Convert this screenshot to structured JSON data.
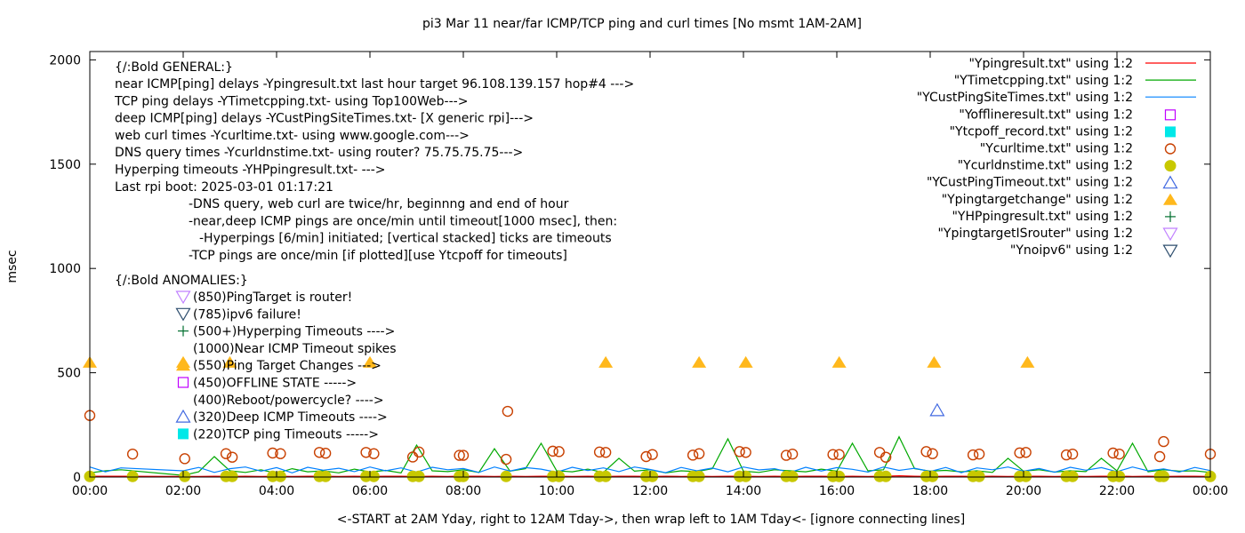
{
  "chart_data": {
    "type": "line+scatter",
    "title": "pi3 Mar 11  near/far ICMP/TCP ping and curl times [No msmt 1AM-2AM]",
    "xlabel": "<-START at 2AM Yday, right to 12AM Tday->, then wrap left to 1AM Tday<- [ignore connecting lines]",
    "ylabel": "msec",
    "xlim": [
      "00:00",
      "24:00"
    ],
    "ylim": [
      0,
      2040
    ],
    "xticks": [
      "00:00",
      "02:00",
      "04:00",
      "06:00",
      "08:00",
      "10:00",
      "12:00",
      "14:00",
      "16:00",
      "18:00",
      "20:00",
      "22:00",
      "00:00"
    ],
    "yticks": [
      "0",
      "500",
      "1000",
      "1500",
      "2000"
    ],
    "grid": false,
    "legend_position": "top-right",
    "x": [
      "00:00",
      "00:20",
      "00:40",
      "02:00",
      "02:20",
      "02:40",
      "03:00",
      "03:20",
      "03:40",
      "04:00",
      "04:20",
      "04:40",
      "05:00",
      "05:20",
      "05:40",
      "06:00",
      "06:20",
      "06:40",
      "07:00",
      "07:20",
      "07:40",
      "08:00",
      "08:20",
      "08:40",
      "09:00",
      "09:20",
      "09:40",
      "10:00",
      "10:20",
      "10:40",
      "11:00",
      "11:20",
      "11:40",
      "12:00",
      "12:20",
      "12:40",
      "13:00",
      "13:20",
      "13:40",
      "14:00",
      "14:20",
      "14:40",
      "15:00",
      "15:20",
      "15:40",
      "16:00",
      "16:20",
      "16:40",
      "17:00",
      "17:20",
      "17:40",
      "18:00",
      "18:20",
      "18:40",
      "19:00",
      "19:20",
      "19:40",
      "20:00",
      "20:20",
      "20:40",
      "21:00",
      "21:20",
      "21:40",
      "22:00",
      "22:20",
      "22:40",
      "23:00",
      "23:20",
      "23:40",
      "24:00"
    ],
    "series": [
      {
        "name": "\"Ypingresult.txt\" using 1:2",
        "style": "line",
        "color": "#ff0000",
        "values": [
          4,
          4,
          4,
          3,
          3,
          4,
          3,
          4,
          3,
          4,
          3,
          4,
          4,
          3,
          4,
          3,
          4,
          4,
          3,
          4,
          3,
          4,
          4,
          3,
          4,
          3,
          4,
          4,
          3,
          4,
          3,
          4,
          4,
          3,
          4,
          3,
          4,
          3,
          4,
          4,
          3,
          4,
          3,
          4,
          4,
          3,
          4,
          3,
          4,
          6,
          4,
          3,
          4,
          4,
          3,
          4,
          3,
          4,
          4,
          3,
          4,
          3,
          4,
          4,
          3,
          4,
          3,
          4,
          4,
          3
        ]
      },
      {
        "name": "\"YTimetcpping.txt\" using 1:2",
        "style": "line",
        "color": "#00a800",
        "values": [
          20,
          30,
          35,
          8,
          25,
          98,
          30,
          22,
          35,
          18,
          40,
          25,
          30,
          20,
          38,
          24,
          32,
          20,
          153,
          30,
          26,
          35,
          22,
          136,
          28,
          40,
          162,
          30,
          25,
          38,
          22,
          90,
          28,
          35,
          20,
          30,
          26,
          40,
          183,
          28,
          22,
          35,
          30,
          25,
          38,
          28,
          162,
          30,
          35,
          193,
          40,
          28,
          32,
          25,
          30,
          22,
          90,
          28,
          35,
          24,
          30,
          26,
          90,
          30,
          162,
          25,
          35,
          28,
          30,
          22
        ]
      },
      {
        "name": "\"YCustPingSiteTimes.txt\" using 1:2",
        "style": "line",
        "color": "#0080ff",
        "values": [
          48,
          25,
          44,
          30,
          46,
          22,
          40,
          48,
          28,
          45,
          20,
          47,
          33,
          42,
          26,
          48,
          30,
          44,
          24,
          47,
          35,
          41,
          22,
          48,
          29,
          45,
          38,
          23,
          47,
          31,
          44,
          26,
          48,
          36,
          21,
          46,
          30,
          43,
          25,
          48,
          34,
          40,
          22,
          47,
          29,
          45,
          37,
          24,
          48,
          32,
          42,
          27,
          46,
          21,
          44,
          35,
          48,
          28,
          41,
          23,
          47,
          33,
          45,
          26,
          48,
          30,
          39,
          24,
          46,
          31
        ]
      },
      {
        "name": "\"Yofflineresult.txt\" using 1:2",
        "style": "open-square",
        "color": "#c000ff",
        "points": []
      },
      {
        "name": "\"Ytcpoff_record.txt\" using 1:2",
        "style": "filled-square",
        "color": "#00e8e8",
        "points": []
      },
      {
        "name": "\"Ycurltime.txt\" using 1:2",
        "style": "open-circle",
        "color": "#c84000",
        "points": [
          [
            "00:00",
            295
          ],
          [
            "00:55",
            110
          ],
          [
            "02:02",
            88
          ],
          [
            "02:55",
            112
          ],
          [
            "03:03",
            95
          ],
          [
            "03:55",
            115
          ],
          [
            "04:05",
            112
          ],
          [
            "04:55",
            118
          ],
          [
            "05:03",
            114
          ],
          [
            "05:55",
            118
          ],
          [
            "06:05",
            112
          ],
          [
            "06:55",
            96
          ],
          [
            "07:03",
            120
          ],
          [
            "07:55",
            104
          ],
          [
            "08:00",
            104
          ],
          [
            "08:55",
            85
          ],
          [
            "08:57",
            315
          ],
          [
            "09:55",
            124
          ],
          [
            "10:03",
            122
          ],
          [
            "10:55",
            120
          ],
          [
            "11:03",
            118
          ],
          [
            "11:55",
            98
          ],
          [
            "12:03",
            108
          ],
          [
            "12:55",
            105
          ],
          [
            "13:03",
            112
          ],
          [
            "13:55",
            122
          ],
          [
            "14:03",
            118
          ],
          [
            "14:55",
            104
          ],
          [
            "15:03",
            110
          ],
          [
            "15:55",
            108
          ],
          [
            "16:03",
            108
          ],
          [
            "16:55",
            118
          ],
          [
            "17:03",
            95
          ],
          [
            "17:55",
            122
          ],
          [
            "18:03",
            112
          ],
          [
            "18:55",
            106
          ],
          [
            "19:03",
            110
          ],
          [
            "19:55",
            116
          ],
          [
            "20:03",
            118
          ],
          [
            "20:55",
            106
          ],
          [
            "21:03",
            110
          ],
          [
            "21:55",
            115
          ],
          [
            "22:03",
            110
          ],
          [
            "22:55",
            98
          ],
          [
            "23:00",
            170
          ],
          [
            "24:00",
            110
          ]
        ]
      },
      {
        "name": "\"Ycurldnstime.txt\" using 1:2",
        "style": "filled-circle",
        "color": "#c8c800",
        "points": [
          [
            "00:00",
            3
          ],
          [
            "00:55",
            3
          ],
          [
            "02:02",
            3
          ],
          [
            "02:55",
            3
          ],
          [
            "03:03",
            3
          ],
          [
            "03:55",
            3
          ],
          [
            "04:05",
            3
          ],
          [
            "04:55",
            3
          ],
          [
            "05:03",
            3
          ],
          [
            "05:55",
            3
          ],
          [
            "06:05",
            3
          ],
          [
            "06:55",
            3
          ],
          [
            "07:03",
            3
          ],
          [
            "07:55",
            3
          ],
          [
            "08:00",
            3
          ],
          [
            "08:55",
            3
          ],
          [
            "09:55",
            3
          ],
          [
            "10:03",
            3
          ],
          [
            "10:55",
            3
          ],
          [
            "11:03",
            3
          ],
          [
            "11:55",
            3
          ],
          [
            "12:03",
            3
          ],
          [
            "12:55",
            3
          ],
          [
            "13:03",
            3
          ],
          [
            "13:55",
            3
          ],
          [
            "14:03",
            3
          ],
          [
            "14:55",
            3
          ],
          [
            "15:03",
            3
          ],
          [
            "15:55",
            3
          ],
          [
            "16:03",
            3
          ],
          [
            "16:55",
            3
          ],
          [
            "17:03",
            3
          ],
          [
            "17:55",
            3
          ],
          [
            "18:03",
            3
          ],
          [
            "18:55",
            3
          ],
          [
            "19:03",
            3
          ],
          [
            "19:55",
            3
          ],
          [
            "20:03",
            3
          ],
          [
            "20:55",
            3
          ],
          [
            "21:03",
            3
          ],
          [
            "21:55",
            3
          ],
          [
            "22:03",
            3
          ],
          [
            "22:55",
            3
          ],
          [
            "23:00",
            3
          ],
          [
            "24:00",
            3
          ]
        ]
      },
      {
        "name": "\"YCustPingTimeout.txt\" using 1:2",
        "style": "open-triangle",
        "color": "#4169e1",
        "points": [
          [
            "18:09",
            320
          ]
        ]
      },
      {
        "name": "\"Ypingtargetchange\" using 1:2",
        "style": "filled-triangle",
        "color": "#ffb81c",
        "points": [
          [
            "00:00",
            550
          ],
          [
            "02:00",
            550
          ],
          [
            "03:00",
            550
          ],
          [
            "06:00",
            550
          ],
          [
            "11:03",
            550
          ],
          [
            "13:03",
            550
          ],
          [
            "14:03",
            550
          ],
          [
            "16:03",
            550
          ],
          [
            "18:05",
            550
          ],
          [
            "20:05",
            550
          ]
        ]
      },
      {
        "name": "\"YHPpingresult.txt\" using 1:2",
        "style": "plus",
        "color": "#006e2e",
        "points": []
      },
      {
        "name": "\"YpingtargetISrouter\" using 1:2",
        "style": "open-down-triangle",
        "color": "#c080ff",
        "points": []
      },
      {
        "name": "\"Ynoipv6\" using 1:2",
        "style": "open-down-triangle",
        "color": "#2f4f6f",
        "points": []
      }
    ],
    "annotations": {
      "general_header": "{/:Bold GENERAL:}",
      "general_lines": [
        "near ICMP[ping] delays -Ypingresult.txt last hour target 96.108.139.157 hop#4 --->",
        "TCP ping delays -YTimetcpping.txt- using Top100Web--->",
        "deep ICMP[ping] delays -YCustPingSiteTimes.txt- [X generic rpi]--->",
        "web curl times -Ycurltime.txt- using www.google.com--->",
        "DNS query times -Ycurldnstime.txt- using router? 75.75.75.75--->",
        "Hyperping timeouts -YHPpingresult.txt- --->",
        "Last rpi boot: 2025-03-01 01:17:21"
      ],
      "notes": [
        "-DNS query, web curl are twice/hr, beginnng and end of hour",
        "-near,deep ICMP pings are once/min until timeout[1000 msec], then:",
        "-Hyperpings [6/min] initiated; [vertical stacked] ticks are timeouts",
        "-TCP pings are once/min [if plotted][use Ytcpoff for timeouts]"
      ],
      "anomalies_header": "{/:Bold ANOMALIES:}",
      "anomalies": [
        {
          "symbol": "open-down-triangle",
          "color": "#c080ff",
          "text": "(850)PingTarget is router!"
        },
        {
          "symbol": "open-down-triangle",
          "color": "#2f4f6f",
          "text": "(785)ipv6 failure!"
        },
        {
          "symbol": "plus",
          "color": "#006e2e",
          "text": "(500+)Hyperping Timeouts ---->"
        },
        {
          "symbol": "none",
          "color": "",
          "text": "(1000)Near ICMP Timeout spikes"
        },
        {
          "symbol": "filled-triangle",
          "color": "#ffb81c",
          "text": "(550)Ping Target Changes --->"
        },
        {
          "symbol": "open-square",
          "color": "#c000ff",
          "text": "(450)OFFLINE STATE ----->"
        },
        {
          "symbol": "none",
          "color": "",
          "text": "(400)Reboot/powercycle? ---->"
        },
        {
          "symbol": "open-triangle",
          "color": "#4169e1",
          "text": "(320)Deep ICMP Timeouts ---->"
        },
        {
          "symbol": "filled-square",
          "color": "#00e8e8",
          "text": "(220)TCP ping Timeouts ----->"
        }
      ]
    }
  }
}
